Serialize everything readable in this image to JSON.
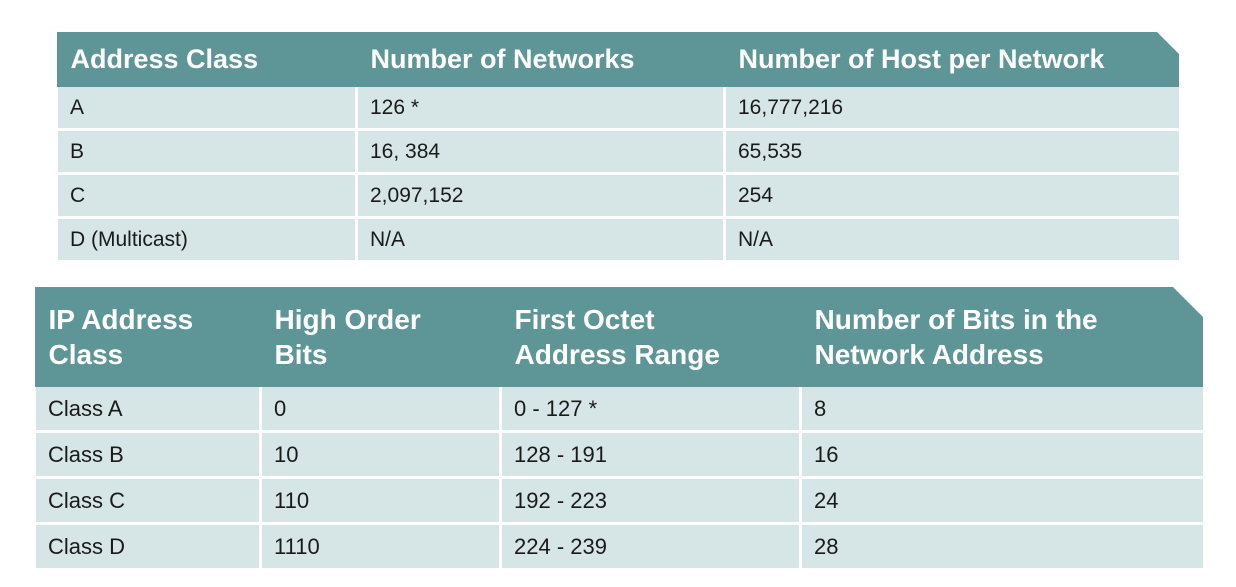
{
  "address_class_table": {
    "headers": [
      "Address Class",
      "Number of Networks",
      "Number of Host per Network"
    ],
    "rows": [
      [
        "A",
        "126 *",
        "16,777,216"
      ],
      [
        "B",
        "16, 384",
        "65,535"
      ],
      [
        "C",
        "2,097,152",
        "254"
      ],
      [
        "D (Multicast)",
        "N/A",
        "N/A"
      ]
    ]
  },
  "ip_class_table": {
    "headers": [
      [
        "IP Address",
        "Class"
      ],
      [
        "High Order",
        "Bits"
      ],
      [
        "First Octet",
        "Address Range"
      ],
      [
        "Number of Bits in the",
        "Network Address"
      ]
    ],
    "rows": [
      [
        "Class A",
        "0",
        "0 - 127 *",
        "8"
      ],
      [
        "Class B",
        "10",
        "128 - 191",
        "16"
      ],
      [
        "Class C",
        "110",
        "192 - 223",
        "24"
      ],
      [
        "Class D",
        "1110",
        "224 - 239",
        "28"
      ]
    ]
  }
}
